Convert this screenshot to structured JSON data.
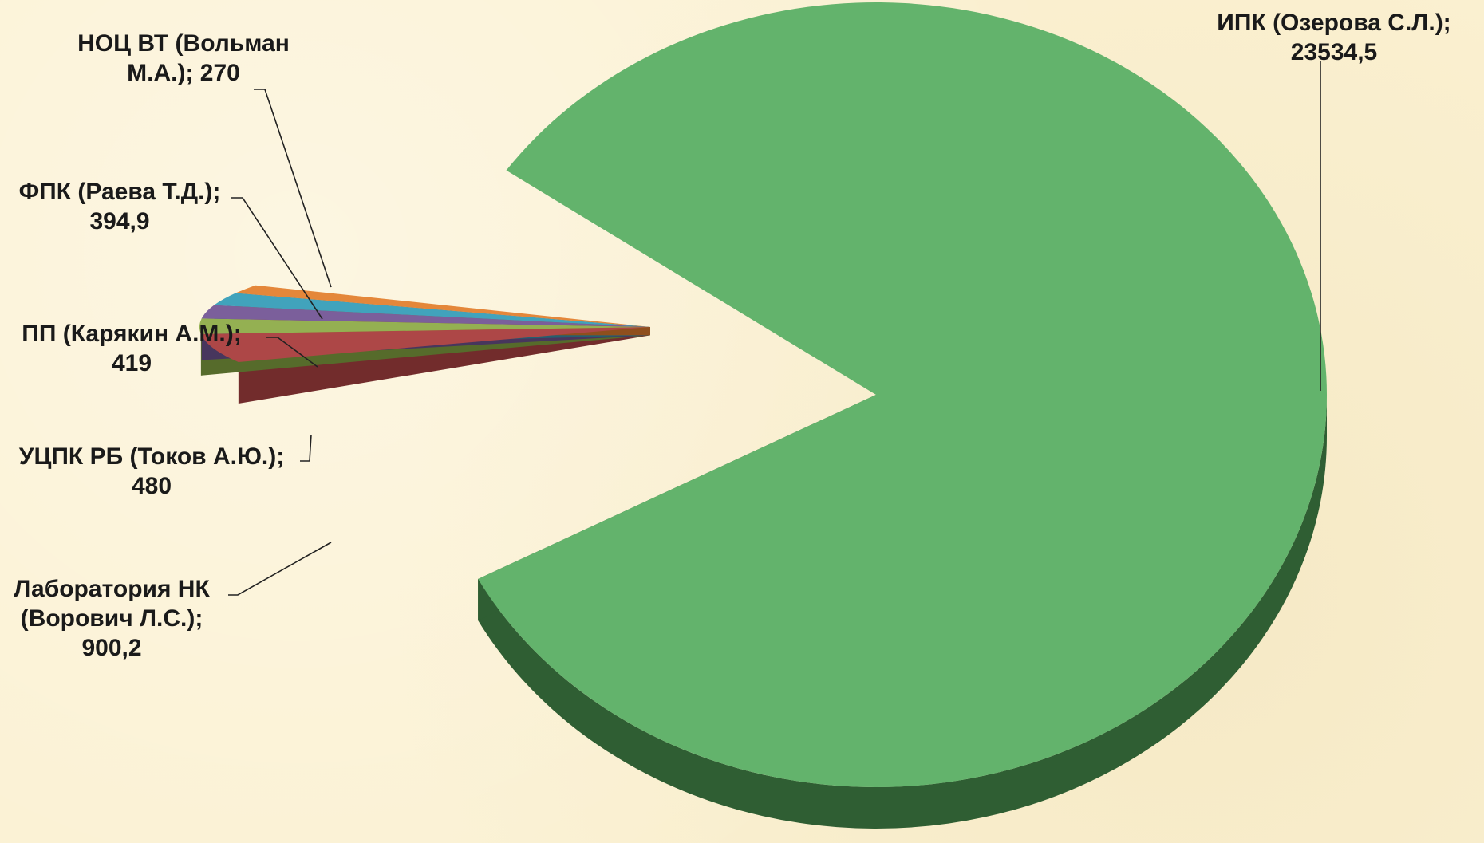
{
  "chart_data": {
    "type": "pie",
    "title": "",
    "style": "3d-exploded",
    "slices": [
      {
        "name": "ИПК (Озерова С.Л.)",
        "value": 23534.5,
        "value_label": "23534,5",
        "color": "#63b36c",
        "side": "#2f5e33",
        "label_lines": [
          "ИПК (Озерова С.Л.);",
          "23534,5"
        ]
      },
      {
        "name": "Лаборатория НК (Ворович Л.С.)",
        "value": 900.2,
        "value_label": "900,2",
        "color": "#ad4747",
        "side": "#722c2c",
        "label_lines": [
          "Лаборатория НК",
          "(Ворович Л.С.);",
          "900,2"
        ]
      },
      {
        "name": "УЦПК РБ (Токов А.Ю.)",
        "value": 480,
        "value_label": "480",
        "color": "#94b052",
        "side": "#566b2b",
        "label_lines": [
          "УЦПК РБ (Токов А.Ю.);",
          "480"
        ]
      },
      {
        "name": "ПП (Карякин А.М.)",
        "value": 419,
        "value_label": "419",
        "color": "#7b5f9b",
        "side": "#47365d",
        "label_lines": [
          "ПП (Карякин А.М.);",
          "419"
        ]
      },
      {
        "name": "ФПК (Раева Т.Д.)",
        "value": 394.9,
        "value_label": "394,9",
        "color": "#41a3bc",
        "side": "#245f70",
        "label_lines": [
          "ФПК (Раева Т.Д.);",
          "394,9"
        ]
      },
      {
        "name": "НОЦ ВТ (Вольман М.А.)",
        "value": 270,
        "value_label": "270",
        "color": "#e4873a",
        "side": "#8f4f1d",
        "label_lines": [
          "НОЦ ВТ (Вольман",
          "М.А.); 270"
        ]
      }
    ]
  }
}
